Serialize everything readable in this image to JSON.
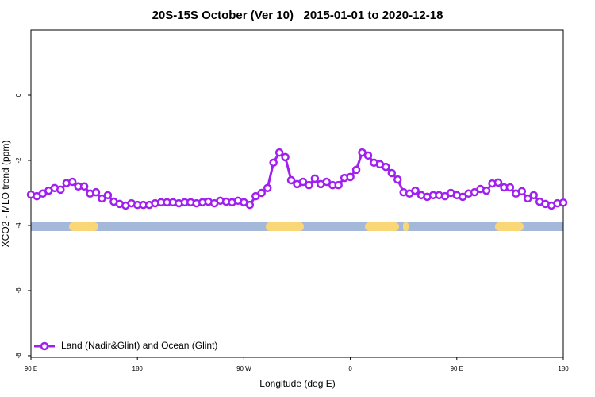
{
  "chart_data": {
    "type": "line",
    "title": "20S-15S October (Ver 10)   2015-01-01 to 2020-12-18",
    "x_label": "Longitude (deg E)",
    "y_label": "XCO2 - MLO trend (ppm)",
    "xlim": [
      90,
      540
    ],
    "xticks": [
      {
        "value": 90,
        "label": "90 E"
      },
      180,
      {
        "value": 270,
        "label": "90 W"
      },
      {
        "value": 360,
        "label": "0"
      },
      {
        "value": 450,
        "label": "90 E"
      },
      {
        "value": 540,
        "label": "180"
      }
    ],
    "ylim": [
      -8.05,
      2
    ],
    "yticks": [
      0,
      -2,
      -4,
      -6,
      -8
    ],
    "legend": "bottom-left",
    "x": [
      90,
      95,
      100,
      105,
      110,
      115,
      120,
      125,
      130,
      135,
      140,
      145,
      150,
      155,
      160,
      165,
      170,
      175,
      180,
      185,
      190,
      195,
      200,
      205,
      210,
      215,
      220,
      225,
      230,
      235,
      240,
      245,
      250,
      255,
      260,
      265,
      270,
      275,
      280,
      285,
      290,
      295,
      300,
      305,
      310,
      315,
      320,
      325,
      330,
      335,
      340,
      345,
      350,
      355,
      360,
      365,
      370,
      375,
      380,
      385,
      390,
      395,
      400,
      405,
      410,
      415,
      420,
      425,
      430,
      435,
      440,
      445,
      450,
      455,
      460,
      465,
      470,
      475,
      480,
      485,
      490,
      495,
      500,
      505,
      510,
      515,
      520,
      525,
      530,
      535,
      540
    ],
    "series": [
      {
        "name": "Land (Nadir&Glint) and Ocean (Glint)",
        "color": "#a020f0",
        "values": [
          -3.05,
          -3.1,
          -3.02,
          -2.93,
          -2.85,
          -2.9,
          -2.7,
          -2.66,
          -2.8,
          -2.8,
          -3.02,
          -2.98,
          -3.17,
          -3.07,
          -3.27,
          -3.34,
          -3.39,
          -3.32,
          -3.37,
          -3.37,
          -3.37,
          -3.32,
          -3.29,
          -3.29,
          -3.29,
          -3.32,
          -3.29,
          -3.29,
          -3.32,
          -3.29,
          -3.27,
          -3.32,
          -3.24,
          -3.27,
          -3.29,
          -3.24,
          -3.29,
          -3.37,
          -3.1,
          -3.0,
          -2.85,
          -2.07,
          -1.76,
          -1.9,
          -2.61,
          -2.73,
          -2.66,
          -2.76,
          -2.56,
          -2.73,
          -2.66,
          -2.76,
          -2.76,
          -2.54,
          -2.51,
          -2.29,
          -1.76,
          -1.85,
          -2.07,
          -2.12,
          -2.2,
          -2.39,
          -2.59,
          -2.98,
          -3.02,
          -2.93,
          -3.07,
          -3.12,
          -3.07,
          -3.07,
          -3.1,
          -3.0,
          -3.07,
          -3.12,
          -3.02,
          -2.98,
          -2.88,
          -2.93,
          -2.71,
          -2.68,
          -2.83,
          -2.83,
          -3.02,
          -2.95,
          -3.17,
          -3.07,
          -3.27,
          -3.34,
          -3.39,
          -3.32,
          -3.3
        ]
      }
    ]
  }
}
